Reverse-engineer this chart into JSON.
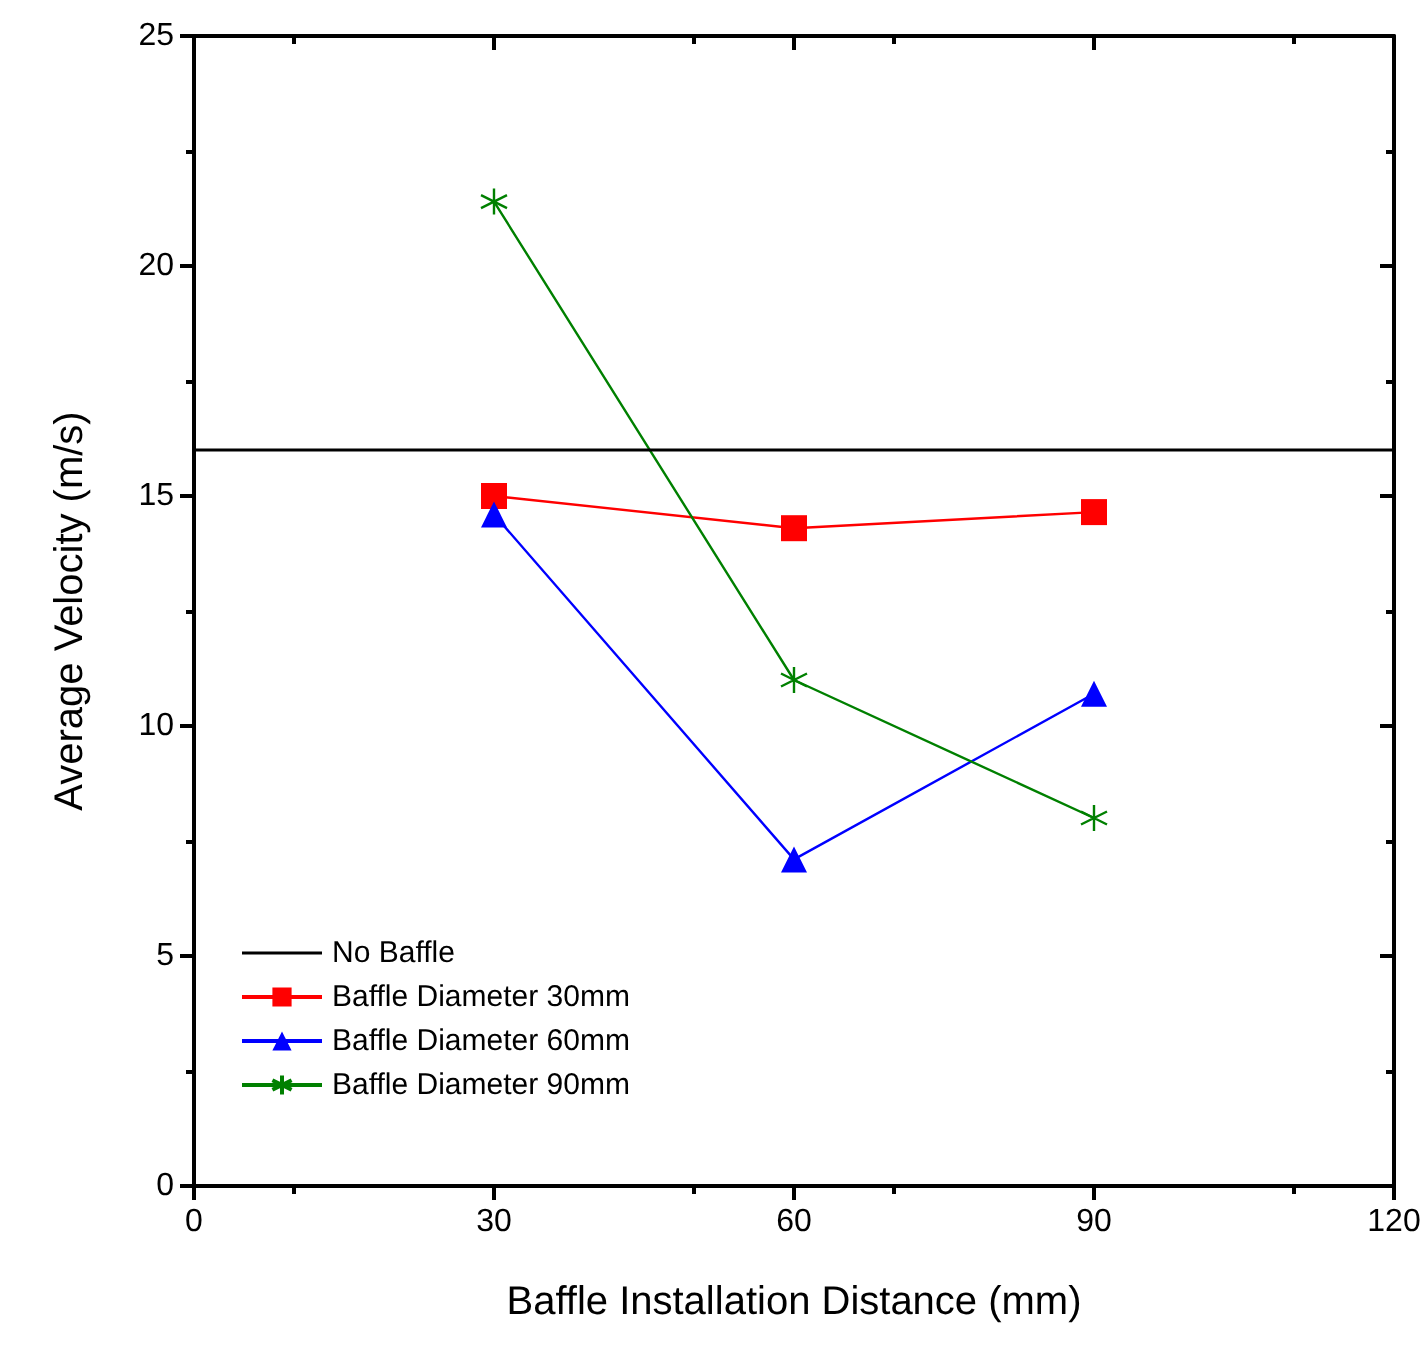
{
  "chart_data": {
    "type": "line",
    "xlabel": "Baffle Installation Distance (mm)",
    "ylabel": "Average Velocity (m/s)",
    "x": [
      30,
      60,
      90
    ],
    "series": [
      {
        "name": "Baffle Diameter 30mm",
        "color": "#ff0000",
        "marker": "square",
        "values": [
          15.0,
          14.3,
          14.65
        ]
      },
      {
        "name": "Baffle Diameter 60mm",
        "color": "#0000ff",
        "marker": "triangle",
        "values": [
          14.6,
          7.1,
          10.7
        ]
      },
      {
        "name": "Baffle Diameter 90mm",
        "color": "#008000",
        "marker": "star",
        "values": [
          21.4,
          11.0,
          8.0
        ]
      }
    ],
    "ref_lines": [
      {
        "axis": "y",
        "value": 16,
        "label": "No Baffle",
        "color": "#000000"
      }
    ],
    "xlim": [
      0,
      120
    ],
    "xticks": [
      0,
      30,
      60,
      90,
      120
    ],
    "ylim": [
      0,
      25
    ],
    "yticks": [
      0,
      5,
      10,
      15,
      20,
      25
    ],
    "grid": false,
    "legend": "bottom left"
  }
}
